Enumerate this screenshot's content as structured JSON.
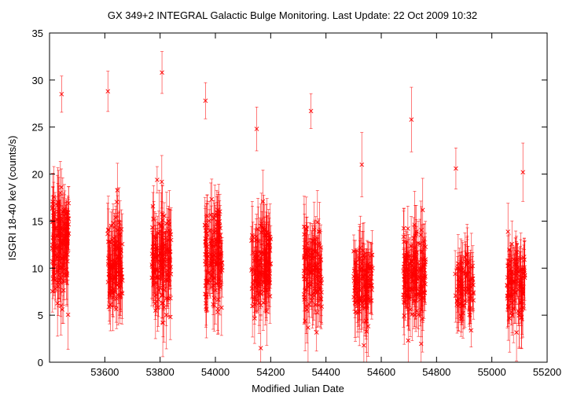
{
  "chart_data": {
    "type": "scatter",
    "title": "GX 349+2   INTEGRAL Galactic Bulge Monitoring.  Last Update: 22 Oct 2009 10:32",
    "xlabel": "Modified Julian Date",
    "ylabel": "ISGRI 18-40 keV (counts/s)",
    "xlim": [
      53400,
      55200
    ],
    "ylim": [
      0,
      35
    ],
    "xticks": [
      53600,
      53800,
      54000,
      54200,
      54400,
      54600,
      54800,
      55000,
      55200
    ],
    "yticks": [
      0,
      5,
      10,
      15,
      20,
      25,
      30,
      35
    ],
    "marker": "x",
    "error_bars": true,
    "color": "#ff0000",
    "grid": false,
    "visits": [
      {
        "x_range": [
          53410,
          53470
        ],
        "y_mean": 12.5,
        "y_spread": 5.5,
        "y_max": 28.5,
        "n": 150
      },
      {
        "x_range": [
          53610,
          53665
        ],
        "y_mean": 10.5,
        "y_spread": 4.5,
        "y_max": 28.8,
        "n": 110
      },
      {
        "x_range": [
          53770,
          53840
        ],
        "y_mean": 11.0,
        "y_spread": 5.0,
        "y_max": 30.8,
        "n": 130
      },
      {
        "x_range": [
          53960,
          54025
        ],
        "y_mean": 11.5,
        "y_spread": 5.0,
        "y_max": 27.8,
        "n": 130
      },
      {
        "x_range": [
          54130,
          54200
        ],
        "y_mean": 10.0,
        "y_spread": 4.5,
        "y_max": 24.8,
        "n": 140
      },
      {
        "x_range": [
          54320,
          54385
        ],
        "y_mean": 10.0,
        "y_spread": 4.5,
        "y_max": 26.7,
        "n": 110
      },
      {
        "x_range": [
          54500,
          54570
        ],
        "y_mean": 8.5,
        "y_spread": 3.5,
        "y_max": 21.0,
        "n": 110
      },
      {
        "x_range": [
          54680,
          54760
        ],
        "y_mean": 9.5,
        "y_spread": 4.5,
        "y_max": 25.8,
        "n": 150
      },
      {
        "x_range": [
          54865,
          54935
        ],
        "y_mean": 8.0,
        "y_spread": 3.5,
        "y_max": 20.6,
        "n": 80
      },
      {
        "x_range": [
          55055,
          55120
        ],
        "y_mean": 8.5,
        "y_spread": 3.5,
        "y_max": 20.2,
        "n": 100
      }
    ]
  }
}
